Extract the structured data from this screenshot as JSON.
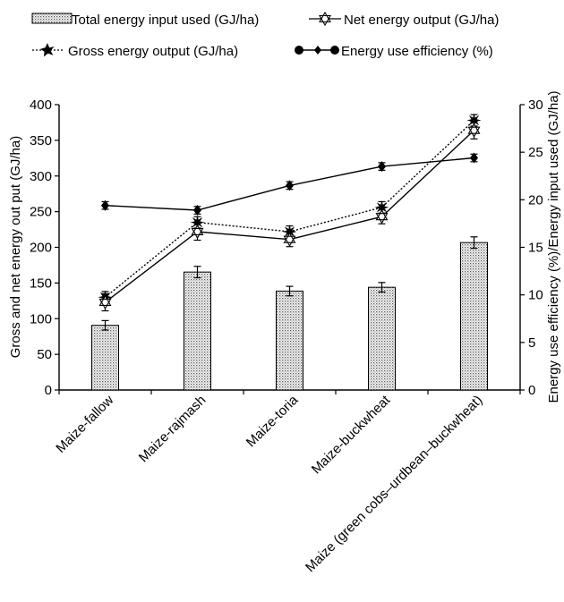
{
  "chart_data": {
    "type": "bar",
    "title": "",
    "categories": [
      "Maize-fallow",
      "Maize-rajmash",
      "Maize-toria",
      "Maize-buckwheat",
      "Maize (green cobs–urdbean–buckwheat)"
    ],
    "ylabel_left": "Gross and net energy out put (GJ/ha)",
    "ylabel_right": "Energy use efficiency (%)/Energy input used (GJ/ha)",
    "ylim_left": [
      0,
      400
    ],
    "ylim_right": [
      0,
      30
    ],
    "yticks_left": [
      "0",
      "50",
      "100",
      "150",
      "200",
      "250",
      "300",
      "350",
      "400"
    ],
    "yticks_right": [
      "0",
      "5",
      "10",
      "15",
      "20",
      "25",
      "30"
    ],
    "legend": {
      "placement": "top",
      "entries": [
        "Total energy input used (GJ/ha)",
        "Net energy output (GJ/ha)",
        "Gross energy output (GJ/ha)",
        "Energy use efficiency (%)"
      ]
    },
    "series": [
      {
        "name": "Total energy input used (GJ/ha)",
        "type": "bar",
        "axis": "right",
        "values": [
          6.8,
          12.4,
          10.4,
          10.8,
          15.5
        ],
        "errors": [
          0.5,
          0.6,
          0.5,
          0.5,
          0.6
        ]
      },
      {
        "name": "Net energy output (GJ/ha)",
        "type": "line",
        "axis": "left",
        "values": [
          123,
          222,
          211,
          243,
          364
        ],
        "errors": [
          12,
          12,
          10,
          10,
          12
        ]
      },
      {
        "name": "Gross energy output (GJ/ha)",
        "type": "line",
        "axis": "left",
        "values": [
          130,
          235,
          222,
          256,
          378
        ],
        "errors": [
          8,
          8,
          8,
          8,
          8
        ]
      },
      {
        "name": "Energy use efficiency (%)",
        "type": "line",
        "axis": "right",
        "values": [
          19.4,
          18.9,
          21.5,
          23.5,
          24.4
        ],
        "errors": [
          0.4,
          0.4,
          0.4,
          0.4,
          0.4
        ]
      }
    ]
  }
}
